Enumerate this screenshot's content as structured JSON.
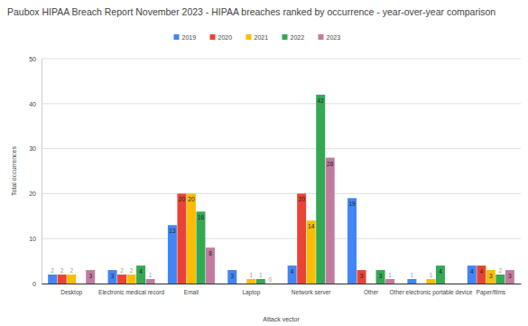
{
  "chart_data": {
    "type": "bar",
    "title": "Paubox HIPAA Breach Report November 2023 - HIPAA breaches ranked by occurrence - year-over-year comparison",
    "x_label": "Attack vector",
    "y_label": "Total occurrences",
    "categories": [
      "Desktop",
      "Electronic medical record",
      "Email",
      "Laptop",
      "Network server",
      "Other",
      "Other electronic portable device",
      "Paper/films"
    ],
    "series": [
      {
        "name": "2019",
        "color": "#4285f4",
        "values": [
          2,
          3,
          13,
          3,
          4,
          19,
          1,
          4
        ]
      },
      {
        "name": "2020",
        "color": "#ea4335",
        "values": [
          2,
          2,
          20,
          null,
          20,
          3,
          null,
          4
        ]
      },
      {
        "name": "2021",
        "color": "#fbbc04",
        "values": [
          2,
          2,
          20,
          1,
          14,
          null,
          1,
          3
        ]
      },
      {
        "name": "2022",
        "color": "#34a853",
        "values": [
          null,
          4,
          16,
          1,
          42,
          3,
          4,
          2
        ]
      },
      {
        "name": "2023",
        "color": "#c27ba0",
        "values": [
          3,
          1,
          8,
          0,
          28,
          1,
          null,
          3
        ]
      }
    ],
    "ylim": [
      0,
      50
    ],
    "yticks": [
      0,
      10,
      20,
      30,
      40,
      50
    ],
    "grid": true,
    "legend": "top",
    "data_labels": true
  }
}
